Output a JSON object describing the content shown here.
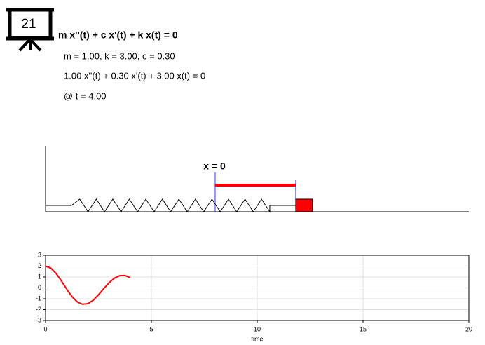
{
  "icon_label": "21",
  "equation": "m x''(t) + c x'(t) + k x(t) = 0",
  "parameters": "m = 1.00, k = 3.00, c = 0.30",
  "instance": "1.00 x''(t) + 0.30 x'(t) + 3.00 x(t) = 0",
  "time_label": "@ t = 4.00",
  "spring": {
    "origin_label": "x = 0",
    "displacement": 0.95
  },
  "chart_data": {
    "type": "line",
    "x": [
      0,
      0.25,
      0.5,
      0.75,
      1,
      1.25,
      1.5,
      1.75,
      2,
      2.25,
      2.5,
      2.75,
      3,
      3.25,
      3.5,
      3.75,
      4
    ],
    "values": [
      2,
      1.82,
      1.33,
      0.64,
      -0.12,
      -0.8,
      -1.29,
      -1.51,
      -1.45,
      -1.14,
      -0.64,
      -0.07,
      0.47,
      0.89,
      1.12,
      1.14,
      0.95
    ],
    "color": "#ff0000",
    "xlabel": "time",
    "xlim": [
      0,
      20
    ],
    "xticks": [
      0,
      5,
      10,
      15,
      20
    ],
    "ylim": [
      -3,
      3
    ],
    "yticks": [
      -3,
      -2,
      -1,
      0,
      1,
      2,
      3
    ],
    "grid": true
  }
}
